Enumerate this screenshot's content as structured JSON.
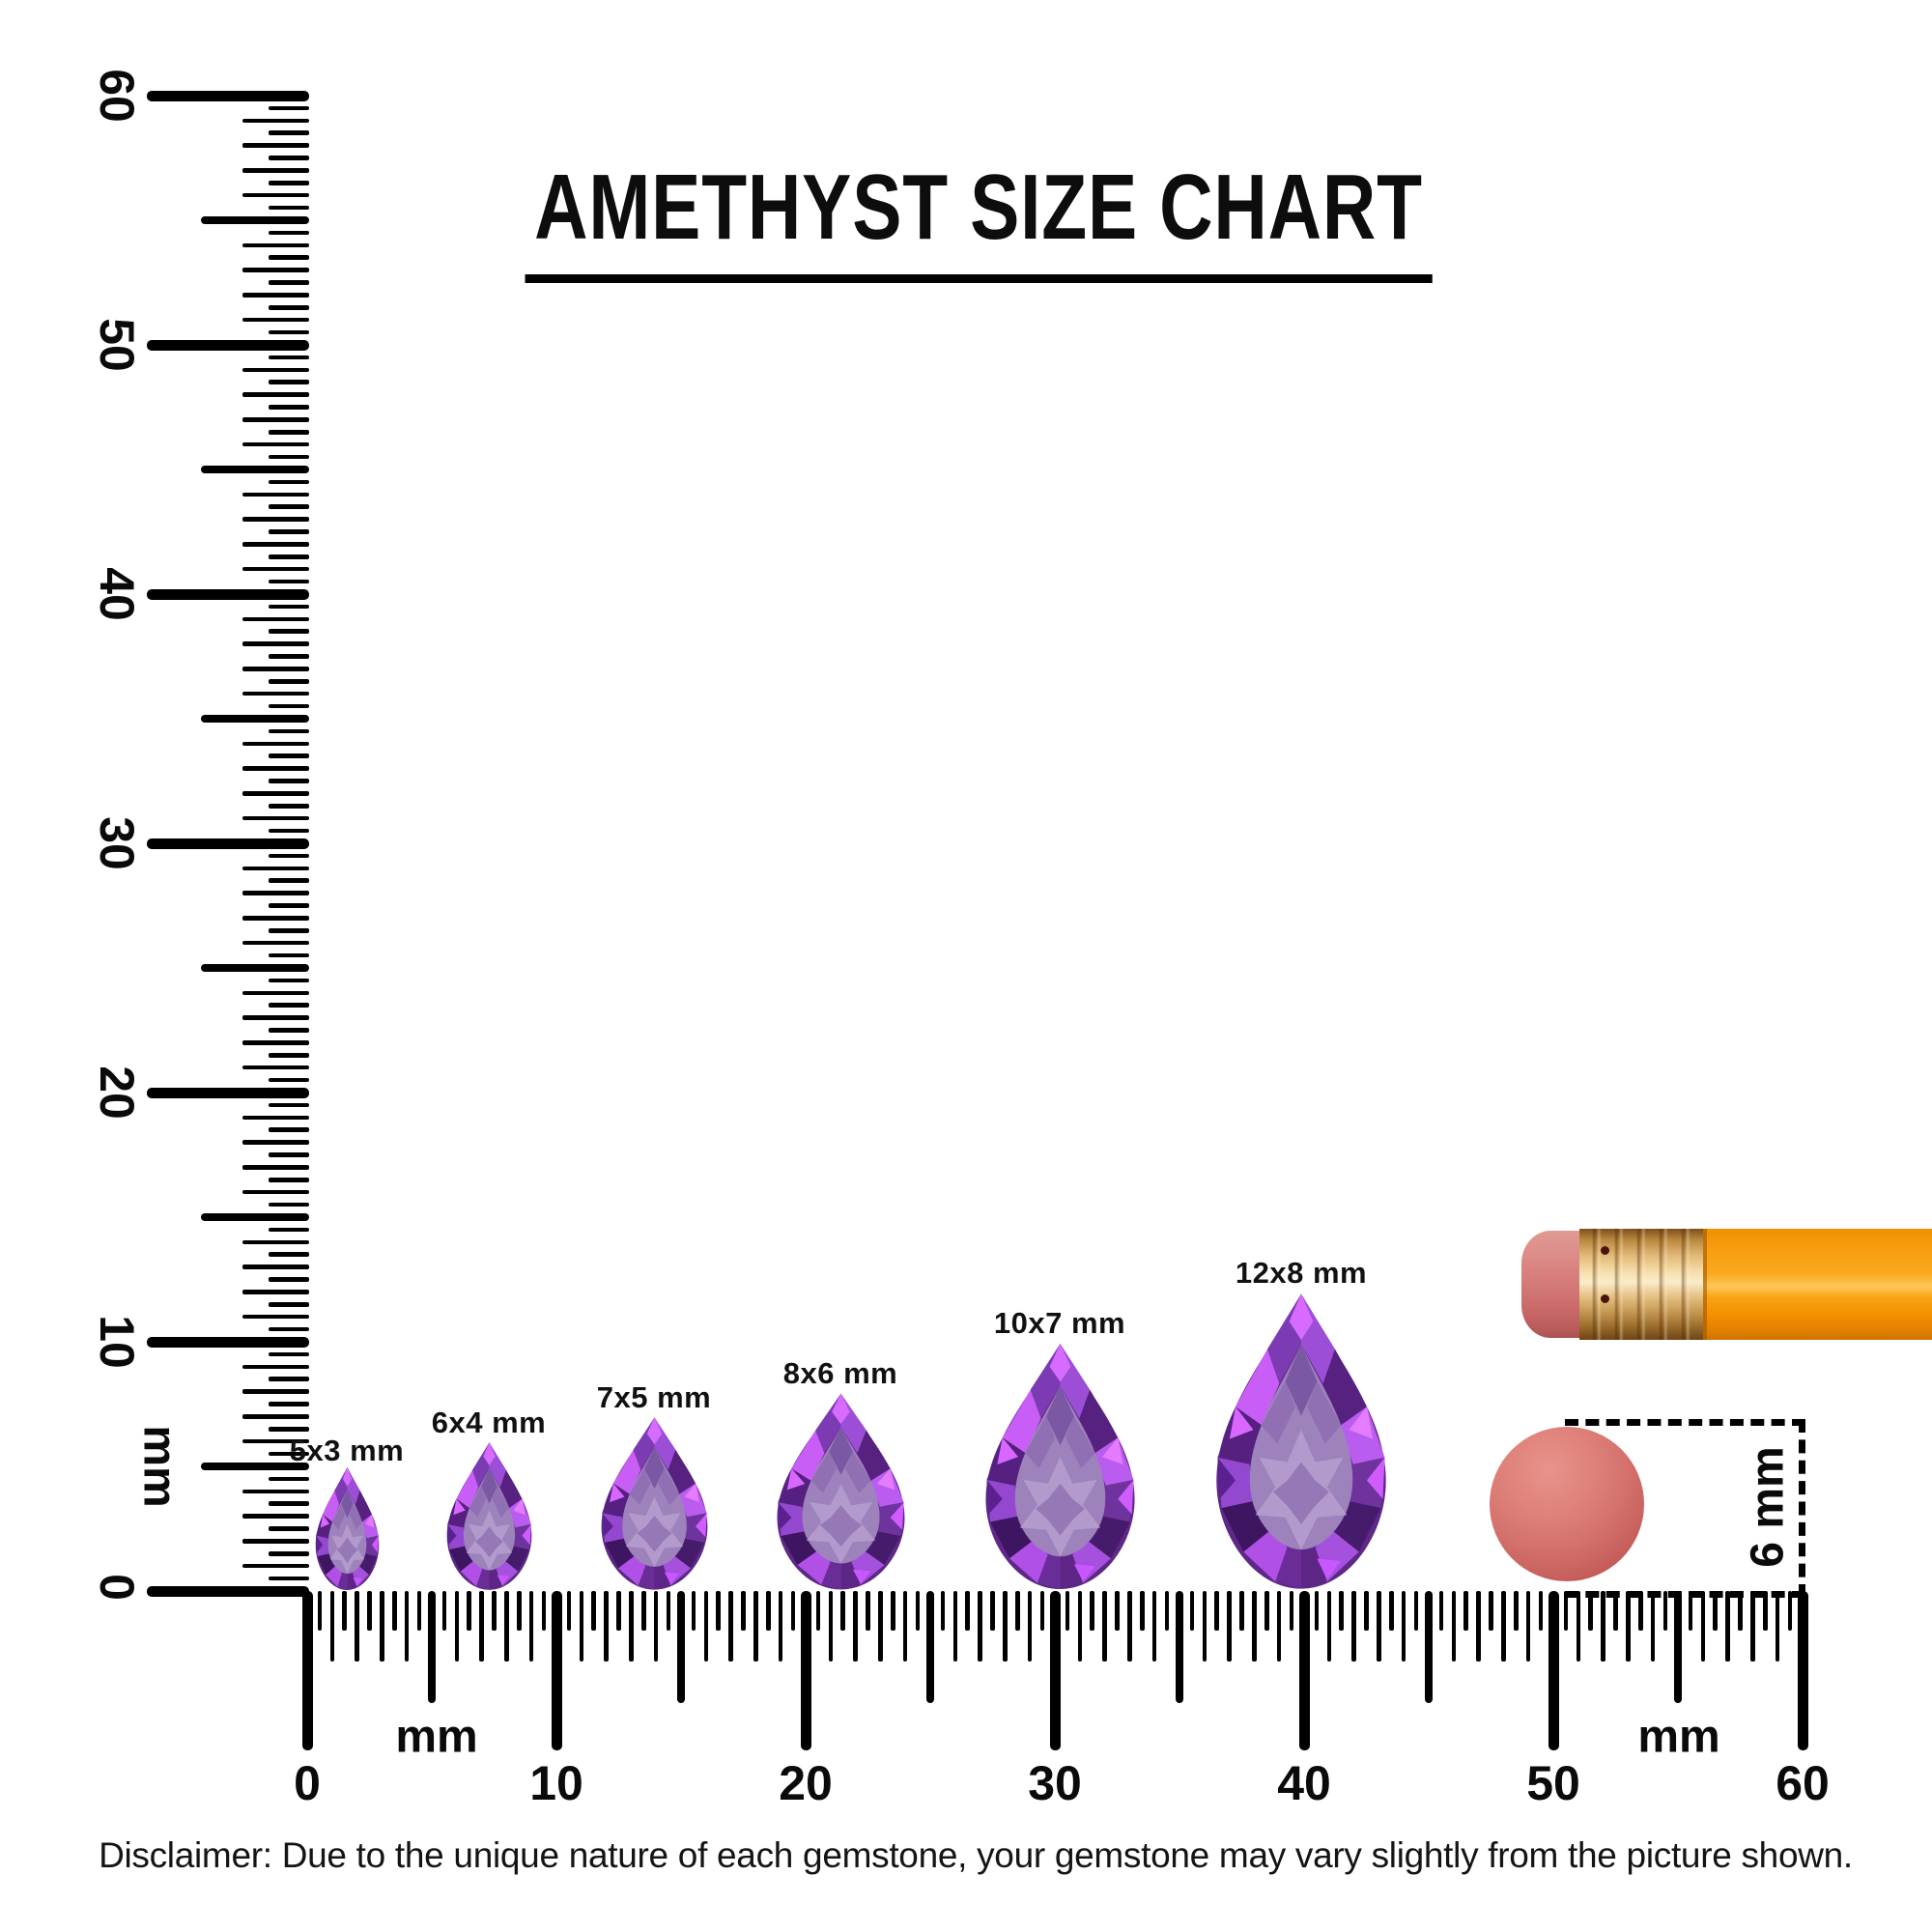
{
  "title": {
    "text": "AMETHYST SIZE CHART"
  },
  "vertical_ruler": {
    "unit_label": "mm",
    "tick_labels": [
      "60",
      "50",
      "40",
      "30",
      "20",
      "10",
      "0"
    ],
    "range_mm": [
      0,
      60
    ]
  },
  "horizontal_ruler": {
    "unit_label_left": "mm",
    "unit_label_right": "mm",
    "tick_labels": [
      "0",
      "10",
      "20",
      "30",
      "40",
      "50",
      "60"
    ],
    "range_mm": [
      0,
      60
    ]
  },
  "gems": [
    {
      "label": "5x3 mm",
      "length_mm": 5,
      "width_mm": 3,
      "position_mm": 1.6
    },
    {
      "label": "6x4 mm",
      "length_mm": 6,
      "width_mm": 4,
      "position_mm": 7.3
    },
    {
      "label": "7x5 mm",
      "length_mm": 7,
      "width_mm": 5,
      "position_mm": 13.9
    },
    {
      "label": "8x6 mm",
      "length_mm": 8,
      "width_mm": 6,
      "position_mm": 21.4
    },
    {
      "label": "10x7 mm",
      "length_mm": 10,
      "width_mm": 7,
      "position_mm": 30.2
    },
    {
      "label": "12x8 mm",
      "length_mm": 12,
      "width_mm": 8,
      "position_mm": 39.9
    }
  ],
  "reference_objects": {
    "eraser_disc": {
      "label": "6 mm",
      "diameter_mm": 6
    },
    "pencil": {
      "description": "pencil with pink eraser and gold ferrule"
    }
  },
  "disclaimer": "Disclaimer: Due to the unique nature of each gemstone, your gemstone may vary slightly from the picture shown.",
  "colors": {
    "amethyst_purple": "#8b41c9",
    "amethyst_magenta_flash": "#c45ff0",
    "amethyst_table": "#9d82bc",
    "coral_disc": "#d3706b",
    "pencil_orange": "#f79e10",
    "ferrule_gold": "#e2b878",
    "eraser_pink": "#d67d7b",
    "ink_black": "#000000"
  }
}
